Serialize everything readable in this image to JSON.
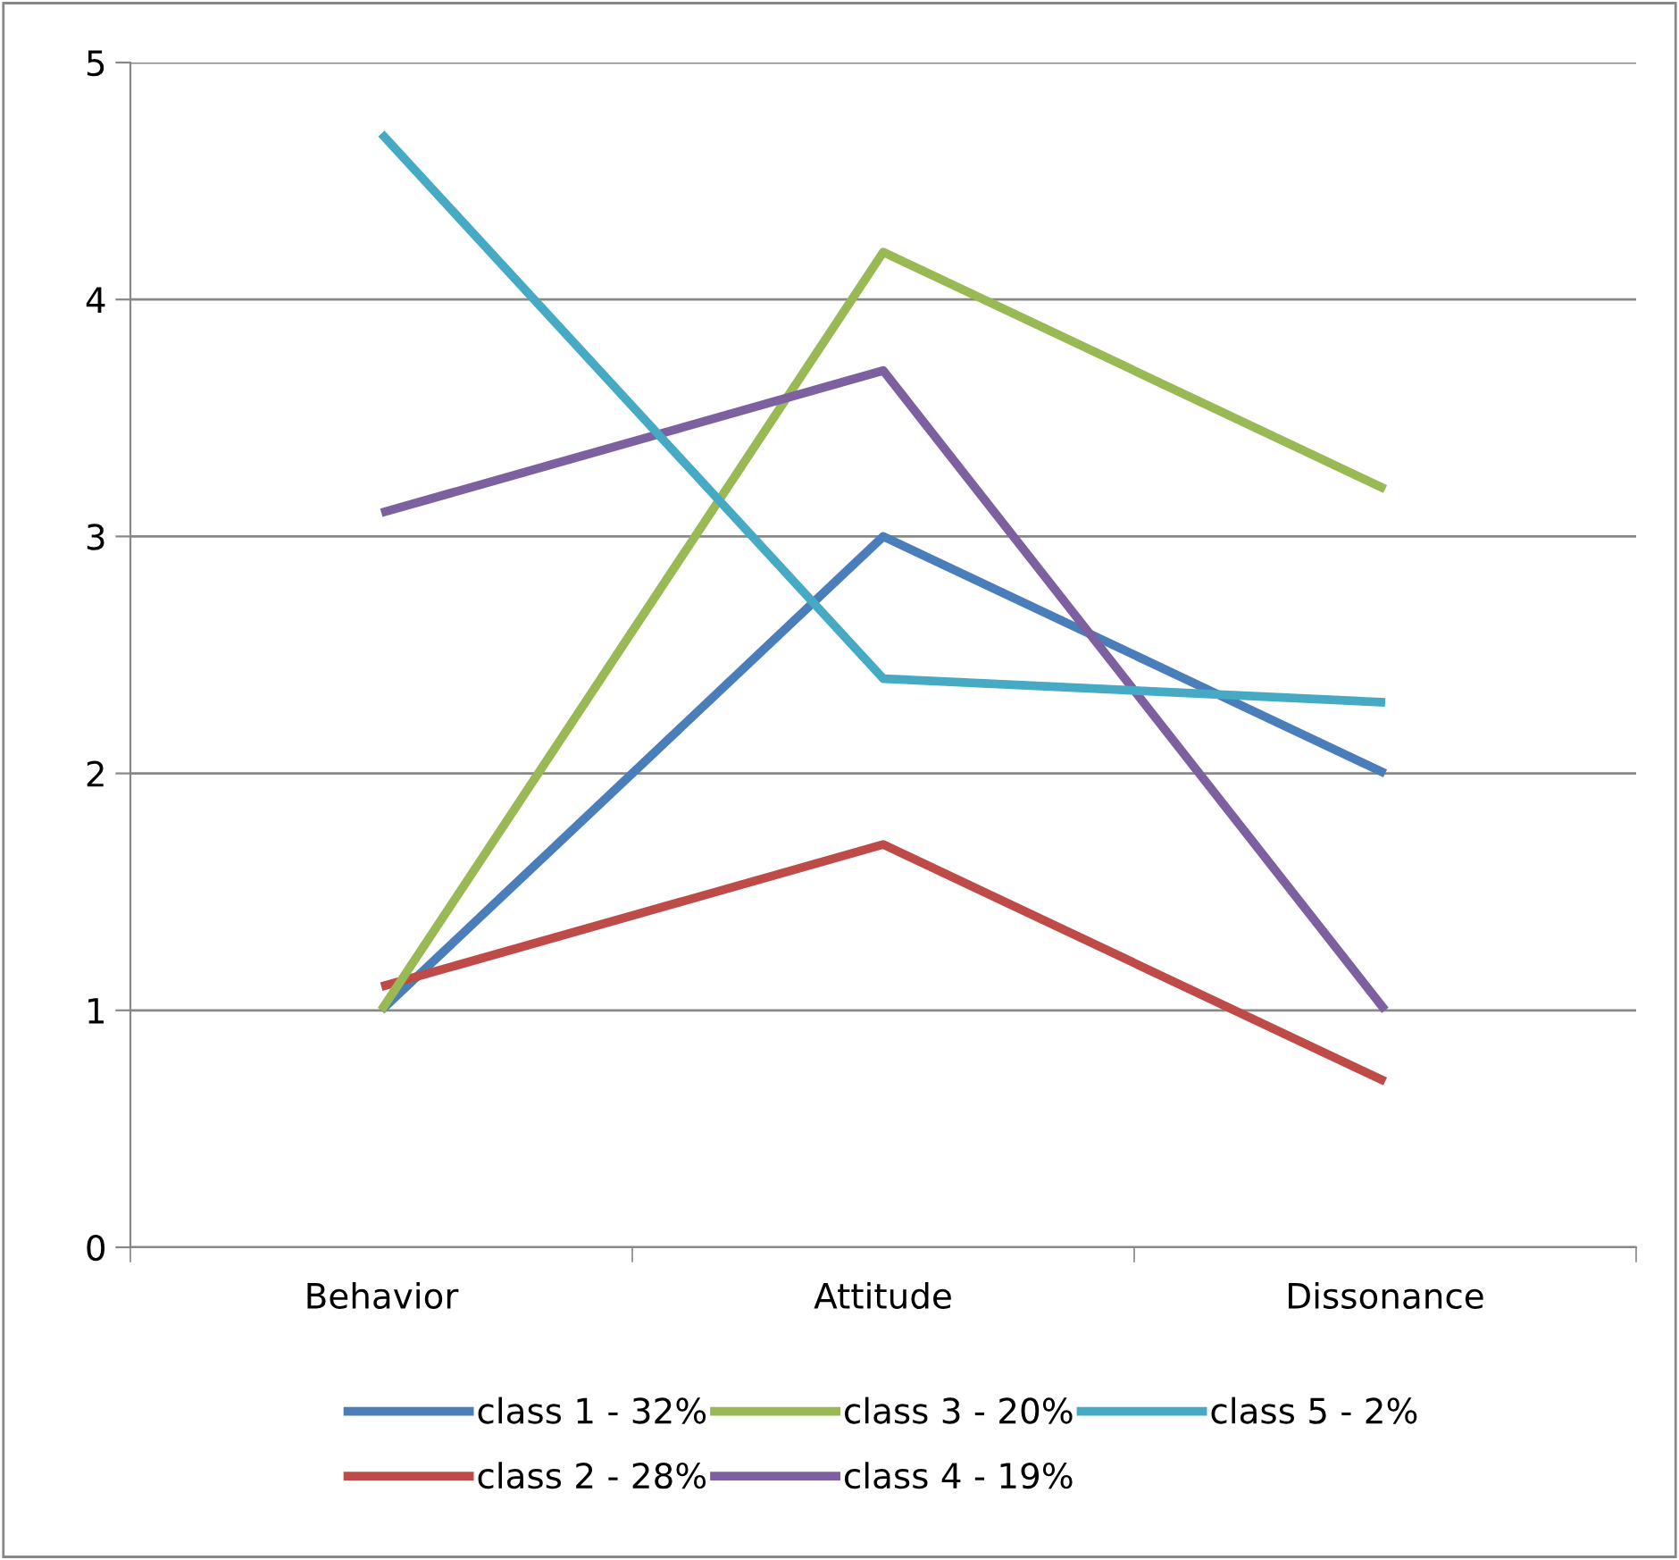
{
  "chart_data": {
    "type": "line",
    "categories": [
      "Behavior",
      "Attitude",
      "Dissonance"
    ],
    "series": [
      {
        "name": "class 1 - 32%",
        "color": "#4a7ebb",
        "values": [
          1.0,
          3.0,
          2.0
        ]
      },
      {
        "name": "class 2 - 28%",
        "color": "#be4b48",
        "values": [
          1.1,
          1.7,
          0.7
        ]
      },
      {
        "name": "class 3 - 20%",
        "color": "#98b954",
        "values": [
          1.0,
          4.2,
          3.2
        ]
      },
      {
        "name": "class 4 - 19%",
        "color": "#7d60a0",
        "values": [
          3.1,
          3.7,
          1.0
        ]
      },
      {
        "name": "class 5 - 2%",
        "color": "#46aac5",
        "values": [
          4.7,
          2.4,
          2.3
        ]
      }
    ],
    "ylim": [
      0,
      5
    ],
    "yticks": [
      0,
      1,
      2,
      3,
      4,
      5
    ],
    "grid": "y",
    "legend": "bottom",
    "marker": "none",
    "line_style": "solid"
  }
}
